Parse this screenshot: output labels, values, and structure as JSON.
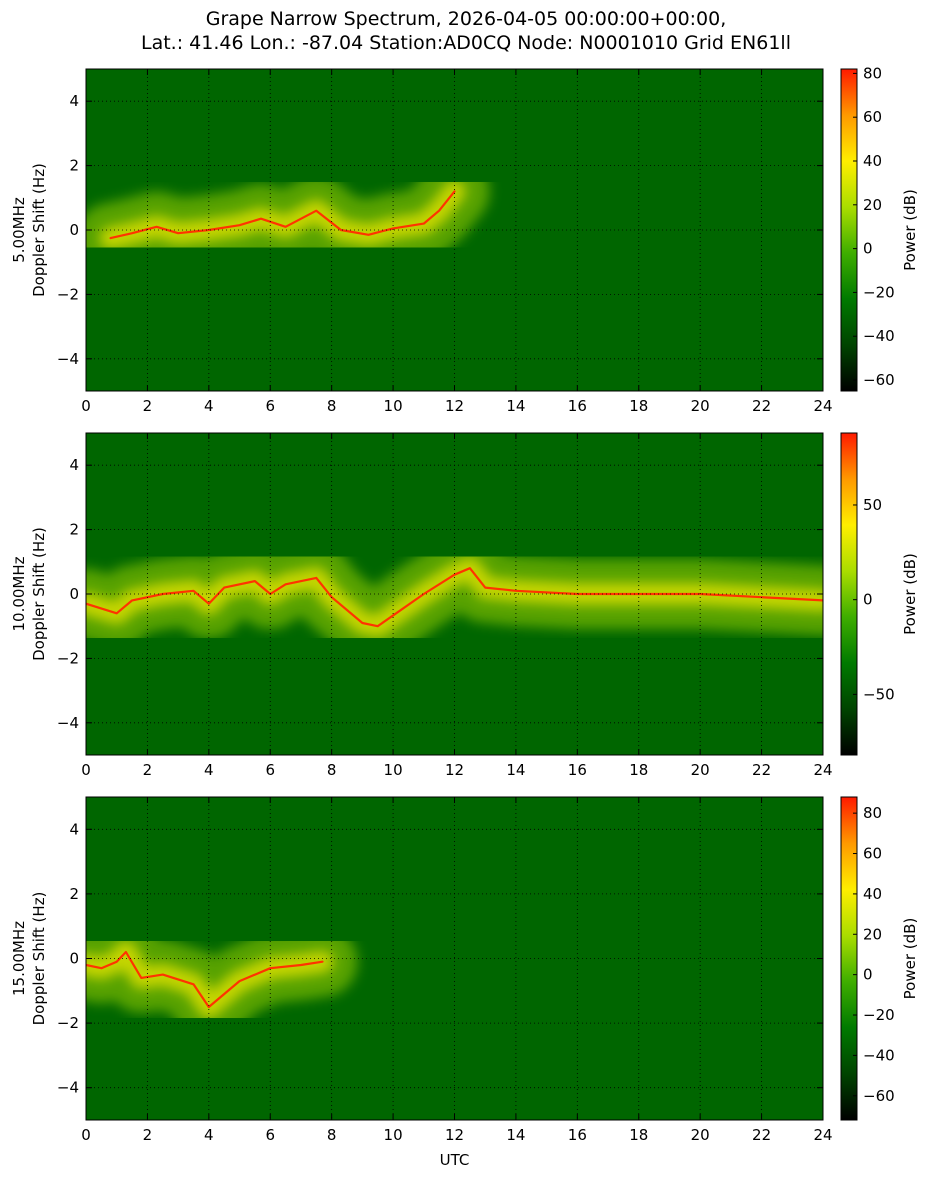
{
  "title_line1": "Grape Narrow Spectrum, 2026-04-05 00:00:00+00:00,",
  "title_line2": "Lat.: 41.46 Lon.: -87.04 Station:AD0CQ Node: N0001010 Grid EN61ll",
  "colors": {
    "background": "#006600",
    "colormap": [
      "#000000",
      "#004400",
      "#007a00",
      "#3fae00",
      "#aadd00",
      "#ffee00",
      "#ff9900",
      "#ff1a00"
    ]
  },
  "chart_data": [
    {
      "type": "heatmap",
      "name": "5.00MHz",
      "ylabel_line1": "5.00MHz",
      "ylabel_line2": "Doppler Shift (Hz)",
      "xlabel": "",
      "xlim": [
        0,
        24
      ],
      "ylim": [
        -5,
        5
      ],
      "xticks": [
        "0",
        "2",
        "4",
        "6",
        "8",
        "10",
        "12",
        "14",
        "16",
        "18",
        "20",
        "22",
        "24"
      ],
      "yticks": [
        "4",
        "2",
        "0",
        "−2",
        "−4"
      ],
      "grid": true,
      "colorbar": {
        "label": "Power (dB)",
        "min": -65,
        "max": 82,
        "ticks": [
          "80",
          "60",
          "40",
          "20",
          "0",
          "−20",
          "−40",
          "−60"
        ]
      },
      "trace": {
        "x": [
          0.8,
          1.5,
          2.3,
          3.0,
          4.0,
          5.0,
          5.7,
          6.5,
          7.5,
          8.3,
          9.2,
          10.0,
          11.0,
          11.5,
          12.0
        ],
        "y": [
          -0.25,
          -0.1,
          0.1,
          -0.1,
          0.0,
          0.15,
          0.35,
          0.1,
          0.6,
          0.0,
          -0.15,
          0.05,
          0.2,
          0.6,
          1.2
        ]
      }
    },
    {
      "type": "heatmap",
      "name": "10.00MHz",
      "ylabel_line1": "10.00MHz",
      "ylabel_line2": "Doppler Shift (Hz)",
      "xlabel": "",
      "xlim": [
        0,
        24
      ],
      "ylim": [
        -5,
        5
      ],
      "xticks": [
        "0",
        "2",
        "4",
        "6",
        "8",
        "10",
        "12",
        "14",
        "16",
        "18",
        "20",
        "22",
        "24"
      ],
      "yticks": [
        "4",
        "2",
        "0",
        "−2",
        "−4"
      ],
      "grid": true,
      "colorbar": {
        "label": "Power (dB)",
        "min": -82,
        "max": 88,
        "ticks": [
          "50",
          "0",
          "−50"
        ]
      },
      "trace": {
        "x": [
          0.0,
          1.0,
          1.5,
          2.5,
          3.5,
          4.0,
          4.5,
          5.5,
          6.0,
          6.5,
          7.5,
          8.0,
          9.0,
          9.5,
          11.0,
          12.0,
          12.5,
          13.0,
          14.0,
          16.0,
          18.0,
          20.0,
          22.0,
          24.0
        ],
        "y": [
          -0.3,
          -0.6,
          -0.2,
          0.0,
          0.1,
          -0.3,
          0.2,
          0.4,
          0.0,
          0.3,
          0.5,
          -0.1,
          -0.9,
          -1.0,
          0.0,
          0.6,
          0.8,
          0.2,
          0.1,
          0.0,
          0.0,
          0.0,
          -0.1,
          -0.2
        ]
      }
    },
    {
      "type": "heatmap",
      "name": "15.00MHz",
      "ylabel_line1": "15.00MHz",
      "ylabel_line2": "Doppler Shift (Hz)",
      "xlabel": "UTC",
      "xlim": [
        0,
        24
      ],
      "ylim": [
        -5,
        5
      ],
      "xticks": [
        "0",
        "2",
        "4",
        "6",
        "8",
        "10",
        "12",
        "14",
        "16",
        "18",
        "20",
        "22",
        "24"
      ],
      "yticks": [
        "4",
        "2",
        "0",
        "−2",
        "−4"
      ],
      "grid": true,
      "colorbar": {
        "label": "Power (dB)",
        "min": -72,
        "max": 88,
        "ticks": [
          "80",
          "60",
          "40",
          "20",
          "0",
          "−20",
          "−40",
          "−60"
        ]
      },
      "trace": {
        "x": [
          0.0,
          0.5,
          1.0,
          1.3,
          1.8,
          2.5,
          3.5,
          4.0,
          5.0,
          6.0,
          7.0,
          7.7
        ],
        "y": [
          -0.2,
          -0.3,
          -0.1,
          0.2,
          -0.6,
          -0.5,
          -0.8,
          -1.5,
          -0.7,
          -0.3,
          -0.2,
          -0.1
        ]
      }
    }
  ]
}
